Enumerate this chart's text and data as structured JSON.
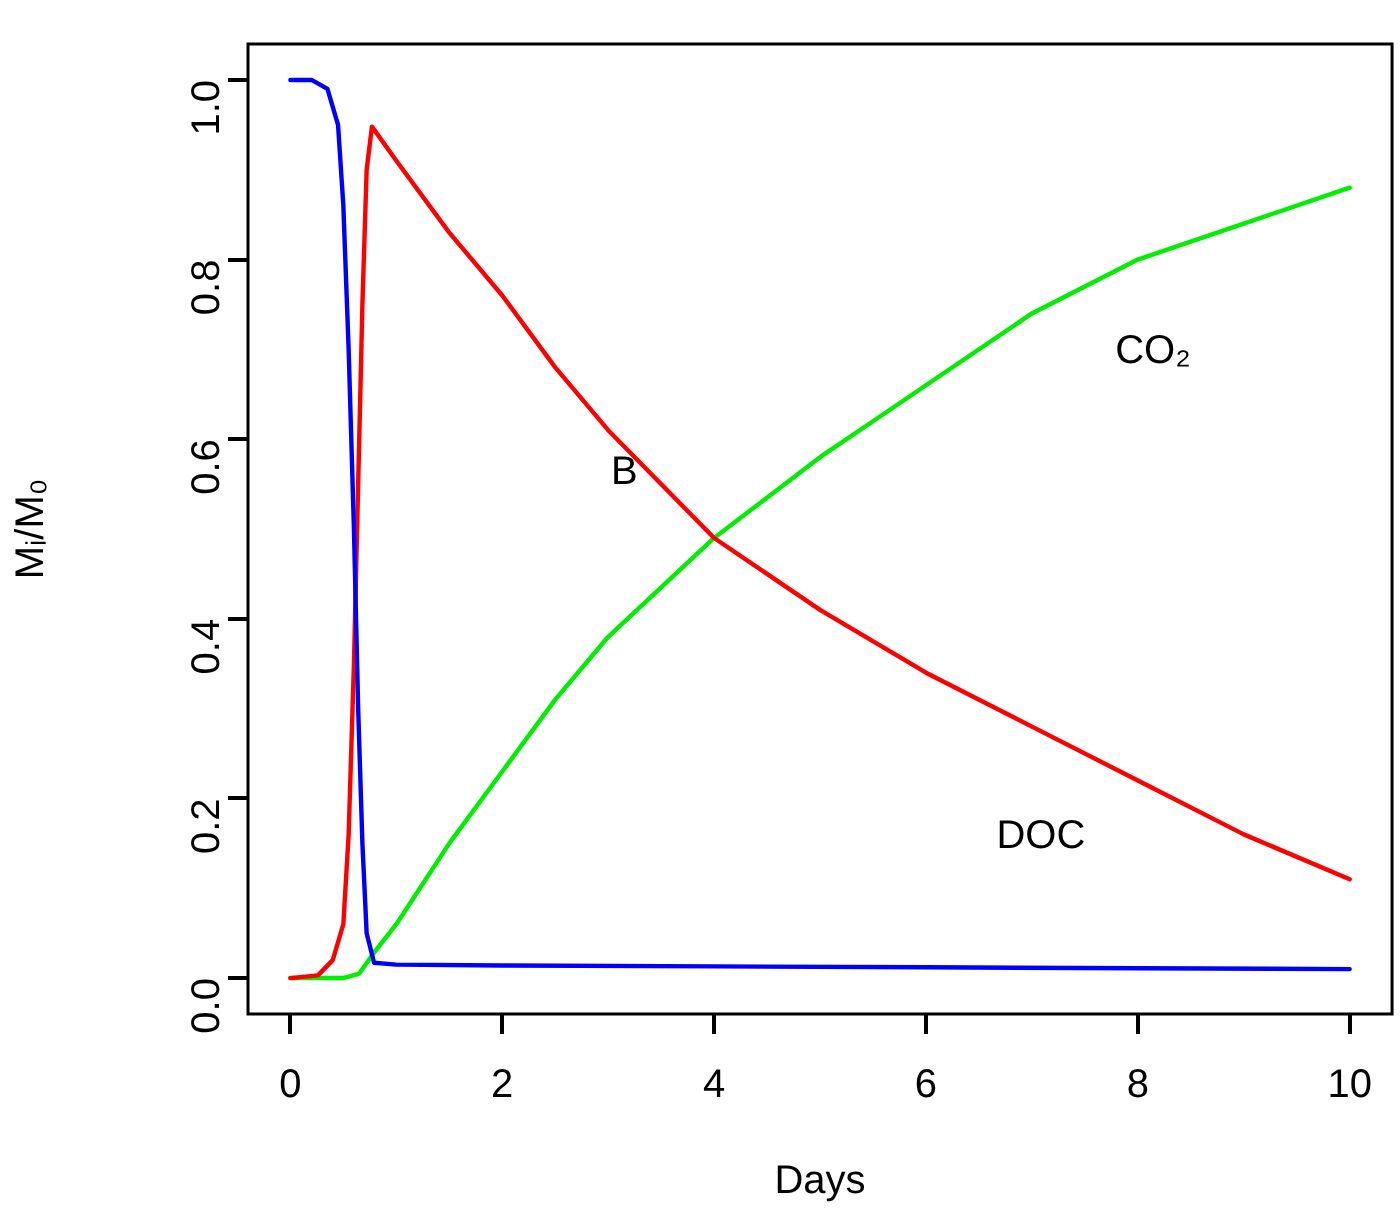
{
  "chart_data": {
    "type": "line",
    "xlabel": "Days",
    "ylabel": "Mᵢ/M₀",
    "xlim": [
      -0.4,
      10.4
    ],
    "ylim": [
      -0.04,
      1.04
    ],
    "xticks": [
      0,
      2,
      4,
      6,
      8,
      10
    ],
    "yticks": [
      {
        "value": 0,
        "label": "0.0"
      },
      {
        "value": 0.2,
        "label": "0.2"
      },
      {
        "value": 0.4,
        "label": "0.4"
      },
      {
        "value": 0.6,
        "label": "0.6"
      },
      {
        "value": 0.8,
        "label": "0.8"
      },
      {
        "value": 1,
        "label": "1.0"
      }
    ],
    "grid": false,
    "legend": false,
    "marker": "none",
    "line_style": "solid",
    "series": [
      {
        "color": "#0000ff",
        "x": [
          0,
          0.2,
          0.35,
          0.45,
          0.5,
          0.55,
          0.6,
          0.64,
          0.68,
          0.72,
          0.79,
          1,
          2,
          4,
          6,
          8,
          10
        ],
        "values": [
          1,
          1,
          0.99,
          0.95,
          0.86,
          0.7,
          0.5,
          0.3,
          0.15,
          0.05,
          0.017,
          0.015,
          0.014,
          0.013,
          0.012,
          0.011,
          0.01
        ]
      },
      {
        "color": "#ff0000",
        "x": [
          0,
          0.26,
          0.4,
          0.5,
          0.55,
          0.6,
          0.64,
          0.68,
          0.72,
          0.77,
          1,
          1.5,
          2,
          2.5,
          3,
          4,
          5,
          6,
          7,
          8,
          9,
          10
        ],
        "values": [
          0,
          0.003,
          0.02,
          0.06,
          0.16,
          0.35,
          0.55,
          0.75,
          0.9,
          0.948,
          0.91,
          0.83,
          0.76,
          0.68,
          0.61,
          0.49,
          0.41,
          0.34,
          0.28,
          0.22,
          0.16,
          0.11
        ]
      },
      {
        "color": "#00ee00",
        "x": [
          0,
          0.5,
          0.65,
          0.8,
          1,
          1.5,
          2,
          2.5,
          3,
          4,
          5,
          5.5,
          6,
          7,
          8,
          9,
          10
        ],
        "values": [
          0,
          0,
          0.005,
          0.03,
          0.06,
          0.15,
          0.23,
          0.31,
          0.38,
          0.49,
          0.58,
          0.62,
          0.66,
          0.74,
          0.8,
          0.84,
          0.88
        ]
      }
    ],
    "annotations": [
      "B",
      "DOC",
      "CO₂"
    ]
  }
}
